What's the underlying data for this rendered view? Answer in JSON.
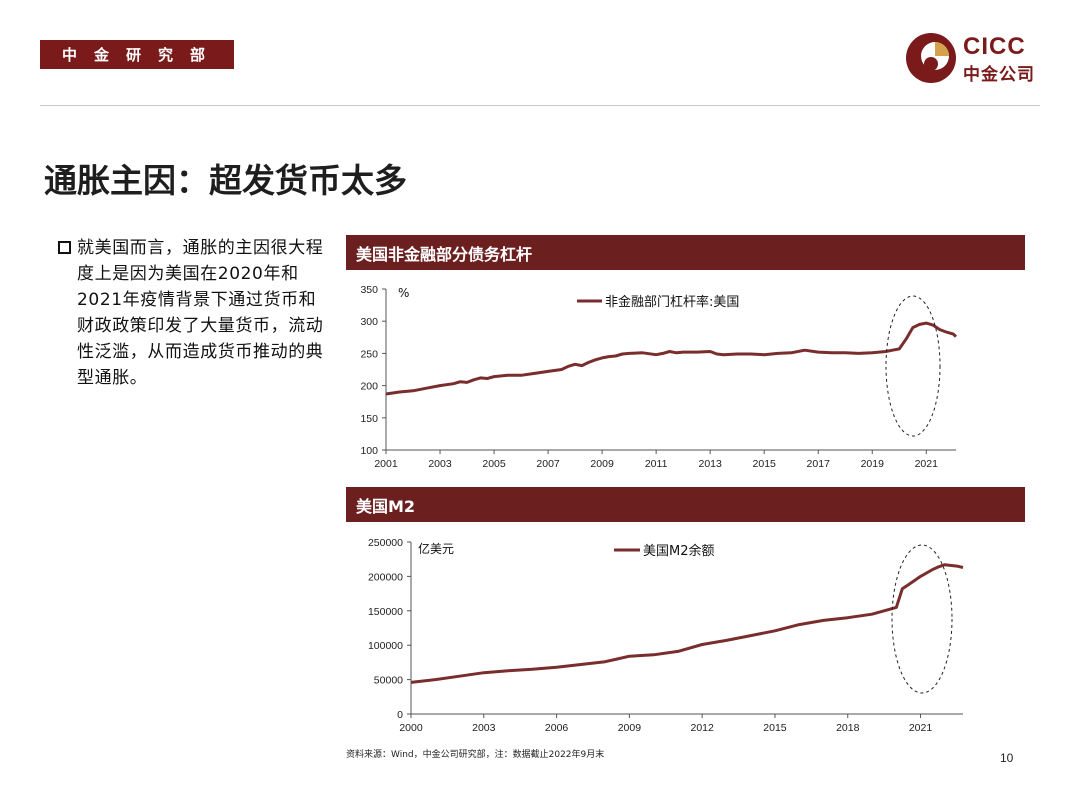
{
  "header": {
    "tag": "中金研究部"
  },
  "logo": {
    "en": "CICC",
    "cn": "中金公司",
    "mark_icon": "cicc-coin-logo-icon"
  },
  "title": "通胀主因：超发货币太多",
  "bullet": {
    "text": "就美国而言，通胀的主因很大程度上是因为美国在2020年和2021年疫情背景下通过货币和财政政策印发了大量货币，流动性泛滥，从而造成货币推动的典型通胀。"
  },
  "colors": {
    "brand": "#7b1a1a",
    "bar": "#6b1f1f",
    "series": "#7a2d2d"
  },
  "charts": [
    {
      "bar_title": "美国非金融部分债务杠杆"
    },
    {
      "bar_title": "美国M2"
    }
  ],
  "chart_data": [
    {
      "type": "line",
      "title": "美国非金融部分债务杠杆",
      "unit": "%",
      "ylim": [
        100,
        350
      ],
      "yticks": [
        100,
        150,
        200,
        250,
        300,
        350
      ],
      "xlim": [
        2001,
        2022.1
      ],
      "xticks": [
        2001,
        2003,
        2005,
        2007,
        2009,
        2011,
        2013,
        2015,
        2017,
        2019,
        2021
      ],
      "legend_position": "top-center",
      "grid": false,
      "series": [
        {
          "name": "非金融部门杠杆率:美国",
          "x": [
            2001.0,
            2001.5,
            2002.0,
            2002.5,
            2003.0,
            2003.5,
            2003.75,
            2004.0,
            2004.25,
            2004.5,
            2004.75,
            2005.0,
            2005.5,
            2006.0,
            2006.5,
            2007.0,
            2007.5,
            2007.75,
            2008.0,
            2008.25,
            2008.5,
            2008.75,
            2009.0,
            2009.25,
            2009.5,
            2009.75,
            2010.0,
            2010.5,
            2011.0,
            2011.25,
            2011.5,
            2011.75,
            2012.0,
            2012.5,
            2013.0,
            2013.25,
            2013.5,
            2014.0,
            2014.5,
            2015.0,
            2015.5,
            2016.0,
            2016.5,
            2017.0,
            2017.5,
            2018.0,
            2018.5,
            2019.0,
            2019.5,
            2019.75,
            2020.0,
            2020.25,
            2020.5,
            2020.75,
            2021.0,
            2021.25,
            2021.5,
            2021.75,
            2022.0,
            2022.1
          ],
          "y": [
            187,
            190,
            192,
            196,
            200,
            203,
            206,
            205,
            209,
            212,
            211,
            214,
            216,
            216,
            219,
            222,
            225,
            230,
            233,
            231,
            236,
            240,
            243,
            245,
            246,
            249,
            250,
            251,
            248,
            250,
            253,
            251,
            252,
            252,
            253,
            249,
            248,
            249,
            249,
            248,
            250,
            251,
            255,
            252,
            251,
            251,
            250,
            251,
            253,
            255,
            257,
            272,
            290,
            295,
            297,
            294,
            287,
            283,
            280,
            276
          ]
        }
      ],
      "annotation": "ellipse around 2020-2021 surge"
    },
    {
      "type": "line",
      "title": "美国M2",
      "unit": "亿美元",
      "ylim": [
        0,
        250000
      ],
      "yticks": [
        0,
        50000,
        100000,
        150000,
        200000,
        250000
      ],
      "xlim": [
        2000,
        2022.75
      ],
      "xticks": [
        2000,
        2003,
        2006,
        2009,
        2012,
        2015,
        2018,
        2021
      ],
      "legend_position": "top-center",
      "grid": false,
      "series": [
        {
          "name": "美国M2余额",
          "x": [
            2000.0,
            2001.0,
            2002.0,
            2003.0,
            2004.0,
            2005.0,
            2006.0,
            2007.0,
            2008.0,
            2008.5,
            2009.0,
            2009.5,
            2010.0,
            2011.0,
            2012.0,
            2013.0,
            2014.0,
            2015.0,
            2016.0,
            2017.0,
            2018.0,
            2019.0,
            2019.5,
            2020.0,
            2020.25,
            2020.5,
            2021.0,
            2021.5,
            2021.75,
            2022.0,
            2022.5,
            2022.75
          ],
          "y": [
            46000,
            50000,
            55000,
            60000,
            63000,
            65000,
            68000,
            72000,
            76000,
            80000,
            84000,
            85000,
            86000,
            91000,
            101000,
            107000,
            114000,
            121000,
            130000,
            136000,
            140000,
            145000,
            150000,
            155000,
            182000,
            188000,
            200000,
            210000,
            214000,
            217000,
            215000,
            213000
          ]
        }
      ],
      "annotation": "ellipse around 2020-2022 surge"
    }
  ],
  "footer": {
    "source": "资料来源：Wind，中金公司研究部，注：数据截止2022年9月末",
    "page": "10"
  }
}
